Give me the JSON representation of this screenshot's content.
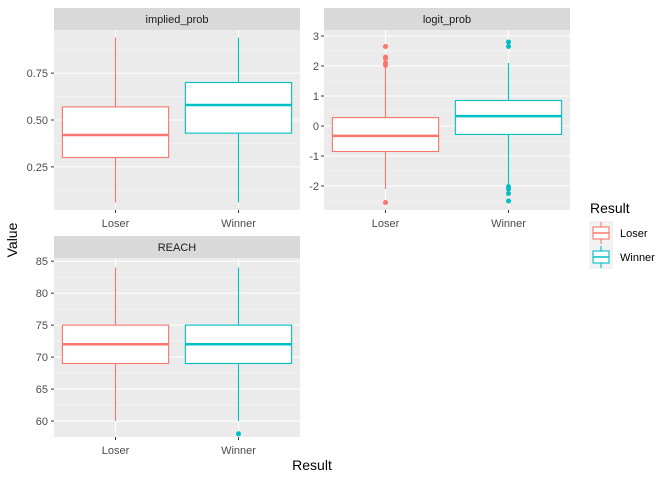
{
  "chart_data": {
    "type": "boxplot",
    "facet_var": "metric",
    "xlabel": "Result",
    "ylabel": "Value",
    "legend": {
      "title": "Result",
      "position": "right",
      "entries": [
        {
          "label": "Loser",
          "color": "#F8766D"
        },
        {
          "label": "Winner",
          "color": "#00BFC4"
        }
      ]
    },
    "categories": [
      "Loser",
      "Winner"
    ],
    "colors": {
      "Loser": "#F8766D",
      "Winner": "#00BFC4"
    },
    "theme": {
      "panel_bg": "#EBEBEB",
      "strip_bg": "#D9D9D9",
      "grid": "#FFFFFF"
    },
    "facets": [
      {
        "title": "implied_prob",
        "ylim": [
          0.02,
          0.98
        ],
        "y_ticks": [
          0.25,
          0.5,
          0.75
        ],
        "y_tick_labels": [
          "0.25",
          "0.50",
          "0.75"
        ],
        "boxes": [
          {
            "category": "Loser",
            "min": 0.06,
            "q1": 0.3,
            "median": 0.42,
            "q3": 0.57,
            "max": 0.94,
            "outliers": []
          },
          {
            "category": "Winner",
            "min": 0.06,
            "q1": 0.43,
            "median": 0.58,
            "q3": 0.7,
            "max": 0.94,
            "outliers": []
          }
        ]
      },
      {
        "title": "logit_prob",
        "ylim": [
          -2.8,
          3.2
        ],
        "y_ticks": [
          -2,
          -1,
          0,
          1,
          2,
          3
        ],
        "y_tick_labels": [
          "-2",
          "-1",
          "0",
          "1",
          "2",
          "3"
        ],
        "boxes": [
          {
            "category": "Loser",
            "min": -2.1,
            "q1": -0.85,
            "median": -0.33,
            "q3": 0.28,
            "max": 1.95,
            "outliers": [
              2.02,
              2.1,
              2.25,
              2.3,
              2.65,
              -2.55
            ]
          },
          {
            "category": "Winner",
            "min": -1.95,
            "q1": -0.28,
            "median": 0.33,
            "q3": 0.85,
            "max": 2.1,
            "outliers": [
              2.65,
              2.8,
              -2.02,
              -2.1,
              -2.25,
              -2.5
            ]
          }
        ]
      },
      {
        "title": "REACH",
        "ylim": [
          57.5,
          85.5
        ],
        "y_ticks": [
          60,
          65,
          70,
          75,
          80,
          85
        ],
        "y_tick_labels": [
          "60",
          "65",
          "70",
          "75",
          "80",
          "85"
        ],
        "boxes": [
          {
            "category": "Loser",
            "min": 60,
            "q1": 69,
            "median": 72,
            "q3": 75,
            "max": 84,
            "outliers": []
          },
          {
            "category": "Winner",
            "min": 60,
            "q1": 69,
            "median": 72,
            "q3": 75,
            "max": 84,
            "outliers": [
              58
            ]
          }
        ]
      }
    ]
  }
}
